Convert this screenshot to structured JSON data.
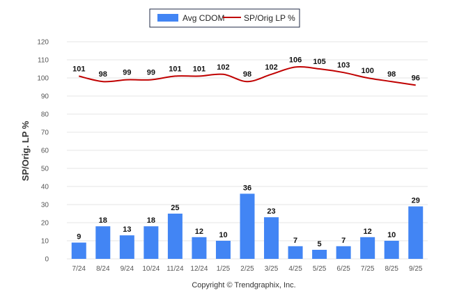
{
  "chart_data": {
    "type": "bar",
    "title": "",
    "xlabel": "",
    "ylabel": "SP/Orig. LP %",
    "ylim": [
      0,
      120
    ],
    "yticks": [
      0,
      10,
      20,
      30,
      40,
      50,
      60,
      70,
      80,
      90,
      100,
      110,
      120
    ],
    "grid": true,
    "legend_position": "top-center",
    "categories": [
      "7/24",
      "8/24",
      "9/24",
      "10/24",
      "11/24",
      "12/24",
      "1/25",
      "2/25",
      "3/25",
      "4/25",
      "5/25",
      "6/25",
      "7/25",
      "8/25",
      "9/25"
    ],
    "series": [
      {
        "name": "Avg CDOM",
        "type": "bar",
        "color": "#4285f4",
        "values": [
          9,
          18,
          13,
          18,
          25,
          12,
          10,
          36,
          23,
          7,
          5,
          7,
          12,
          10,
          29
        ]
      },
      {
        "name": "SP/Orig LP %",
        "type": "line",
        "color": "#c00000",
        "values": [
          101,
          98,
          99,
          99,
          101,
          101,
          102,
          98,
          102,
          106,
          105,
          103,
          100,
          98,
          96
        ]
      }
    ]
  },
  "copyright": "Copyright © Trendgraphix, Inc."
}
